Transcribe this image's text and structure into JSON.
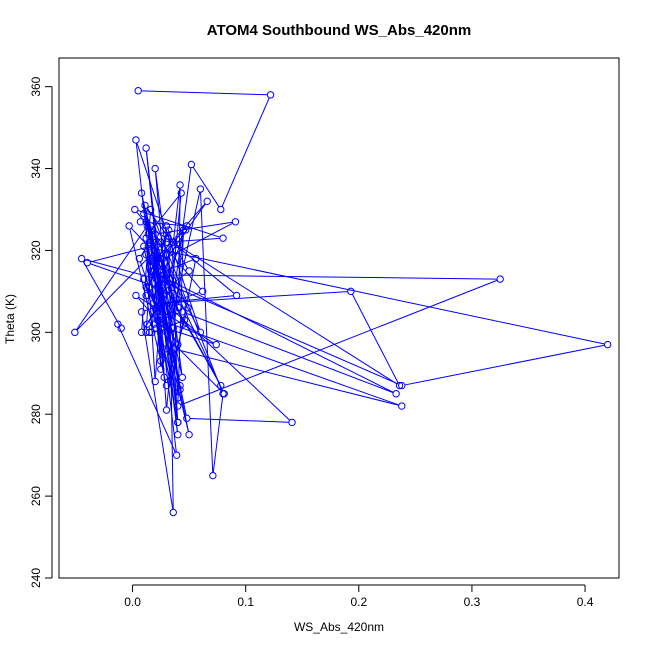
{
  "chart_data": {
    "type": "line",
    "title": "ATOM4 Southbound WS_Abs_420nm",
    "xlabel": "WS_Abs_420nm",
    "ylabel": "Theta (K)",
    "xlim": [
      -0.065,
      0.43
    ],
    "ylim": [
      240,
      367
    ],
    "x_ticks": [
      "0.0",
      "0.1",
      "0.2",
      "0.3",
      "0.4"
    ],
    "y_ticks": [
      "240",
      "260",
      "280",
      "300",
      "320",
      "340",
      "360"
    ],
    "grid": false,
    "legend": "none",
    "color": "#0000ff",
    "marker": "open-circle",
    "series": [
      {
        "x": [
          0.005,
          0.122,
          0.078,
          0.052,
          0.03,
          0.012,
          0.04,
          0.02,
          0.044,
          0.008,
          0.035,
          0.016,
          0.025,
          0.003,
          0.06,
          0.018,
          0.04,
          0.022,
          0.01,
          0.045,
          0.019,
          0.014,
          -0.003,
          0.03,
          0.049,
          0.02,
          0.091,
          0.015,
          0.066,
          0.012,
          0.04,
          0.025,
          0.002,
          0.08,
          0.03,
          -0.04,
          0.022,
          0.012,
          0.078,
          0.046,
          0.028,
          0.003,
          0.074,
          0.019,
          0.081,
          0.014,
          0.043,
          0.032,
          0.011,
          0.035,
          0.047,
          0.021,
          0.062,
          0.013,
          -0.051,
          0.031,
          0.092,
          0.018,
          0.193,
          0.236,
          0.007,
          0.048,
          0.016,
          0.233,
          0.044,
          0.024,
          0.238,
          0.036,
          0.04,
          0.01,
          0.42,
          0.238,
          0.021,
          0.017,
          0.013,
          0.027,
          0.039,
          0.05,
          0.022,
          0.141,
          0.048,
          0.012,
          0.015,
          0.025,
          0.05,
          0.018,
          0.028,
          0.022,
          0.025,
          0.06,
          0.071,
          0.08,
          0.016,
          0.008,
          0.035,
          0.02,
          0.042,
          0.025,
          0.036,
          0.015,
          0.012,
          0.018,
          0.03,
          0.325,
          0.04,
          0.045,
          0.03,
          0.022,
          -0.045,
          -0.01,
          -0.013,
          0.039,
          0.02,
          0.056,
          0.034,
          0.021,
          0.04,
          0.008,
          0.036,
          0.032,
          0.012,
          0.025,
          0.015,
          0.006,
          0.022,
          0.01,
          0.04,
          0.035,
          0.028,
          0.018,
          0.042,
          0.012,
          0.02,
          0.03,
          0.036,
          0.042,
          0.041,
          0.03
        ],
        "y": [
          359,
          358,
          330,
          341,
          296,
          345,
          278,
          340,
          289,
          334,
          295,
          326,
          293,
          347,
          300,
          322,
          275,
          318,
          329,
          302,
          320,
          321,
          326,
          287,
          306,
          324,
          327,
          316,
          332,
          311,
          297,
          322,
          330,
          323,
          322,
          317,
          311,
          319,
          287,
          303,
          301,
          309,
          297,
          302,
          285,
          324,
          334,
          303,
          331,
          322,
          325,
          306,
          310,
          326,
          300,
          323,
          309,
          307,
          310,
          287,
          327,
          326,
          315,
          285,
          305,
          303,
          282,
          296,
          278,
          321,
          297,
          287,
          313,
          300,
          302,
          309,
          320,
          315,
          309,
          278,
          279,
          327,
          311,
          304,
          275,
          318,
          289,
          303,
          291,
          335,
          265,
          285,
          330,
          300,
          311,
          318,
          286,
          318,
          301,
          300,
          300,
          325,
          314,
          313,
          282,
          325,
          281,
          313,
          318,
          301,
          302,
          270,
          314,
          318,
          288,
          301,
          308,
          305,
          256,
          325,
          309,
          313,
          322,
          318,
          305,
          313,
          284,
          322,
          314,
          315,
          287,
          323,
          288,
          326,
          322,
          336,
          306,
          319
        ]
      }
    ]
  }
}
